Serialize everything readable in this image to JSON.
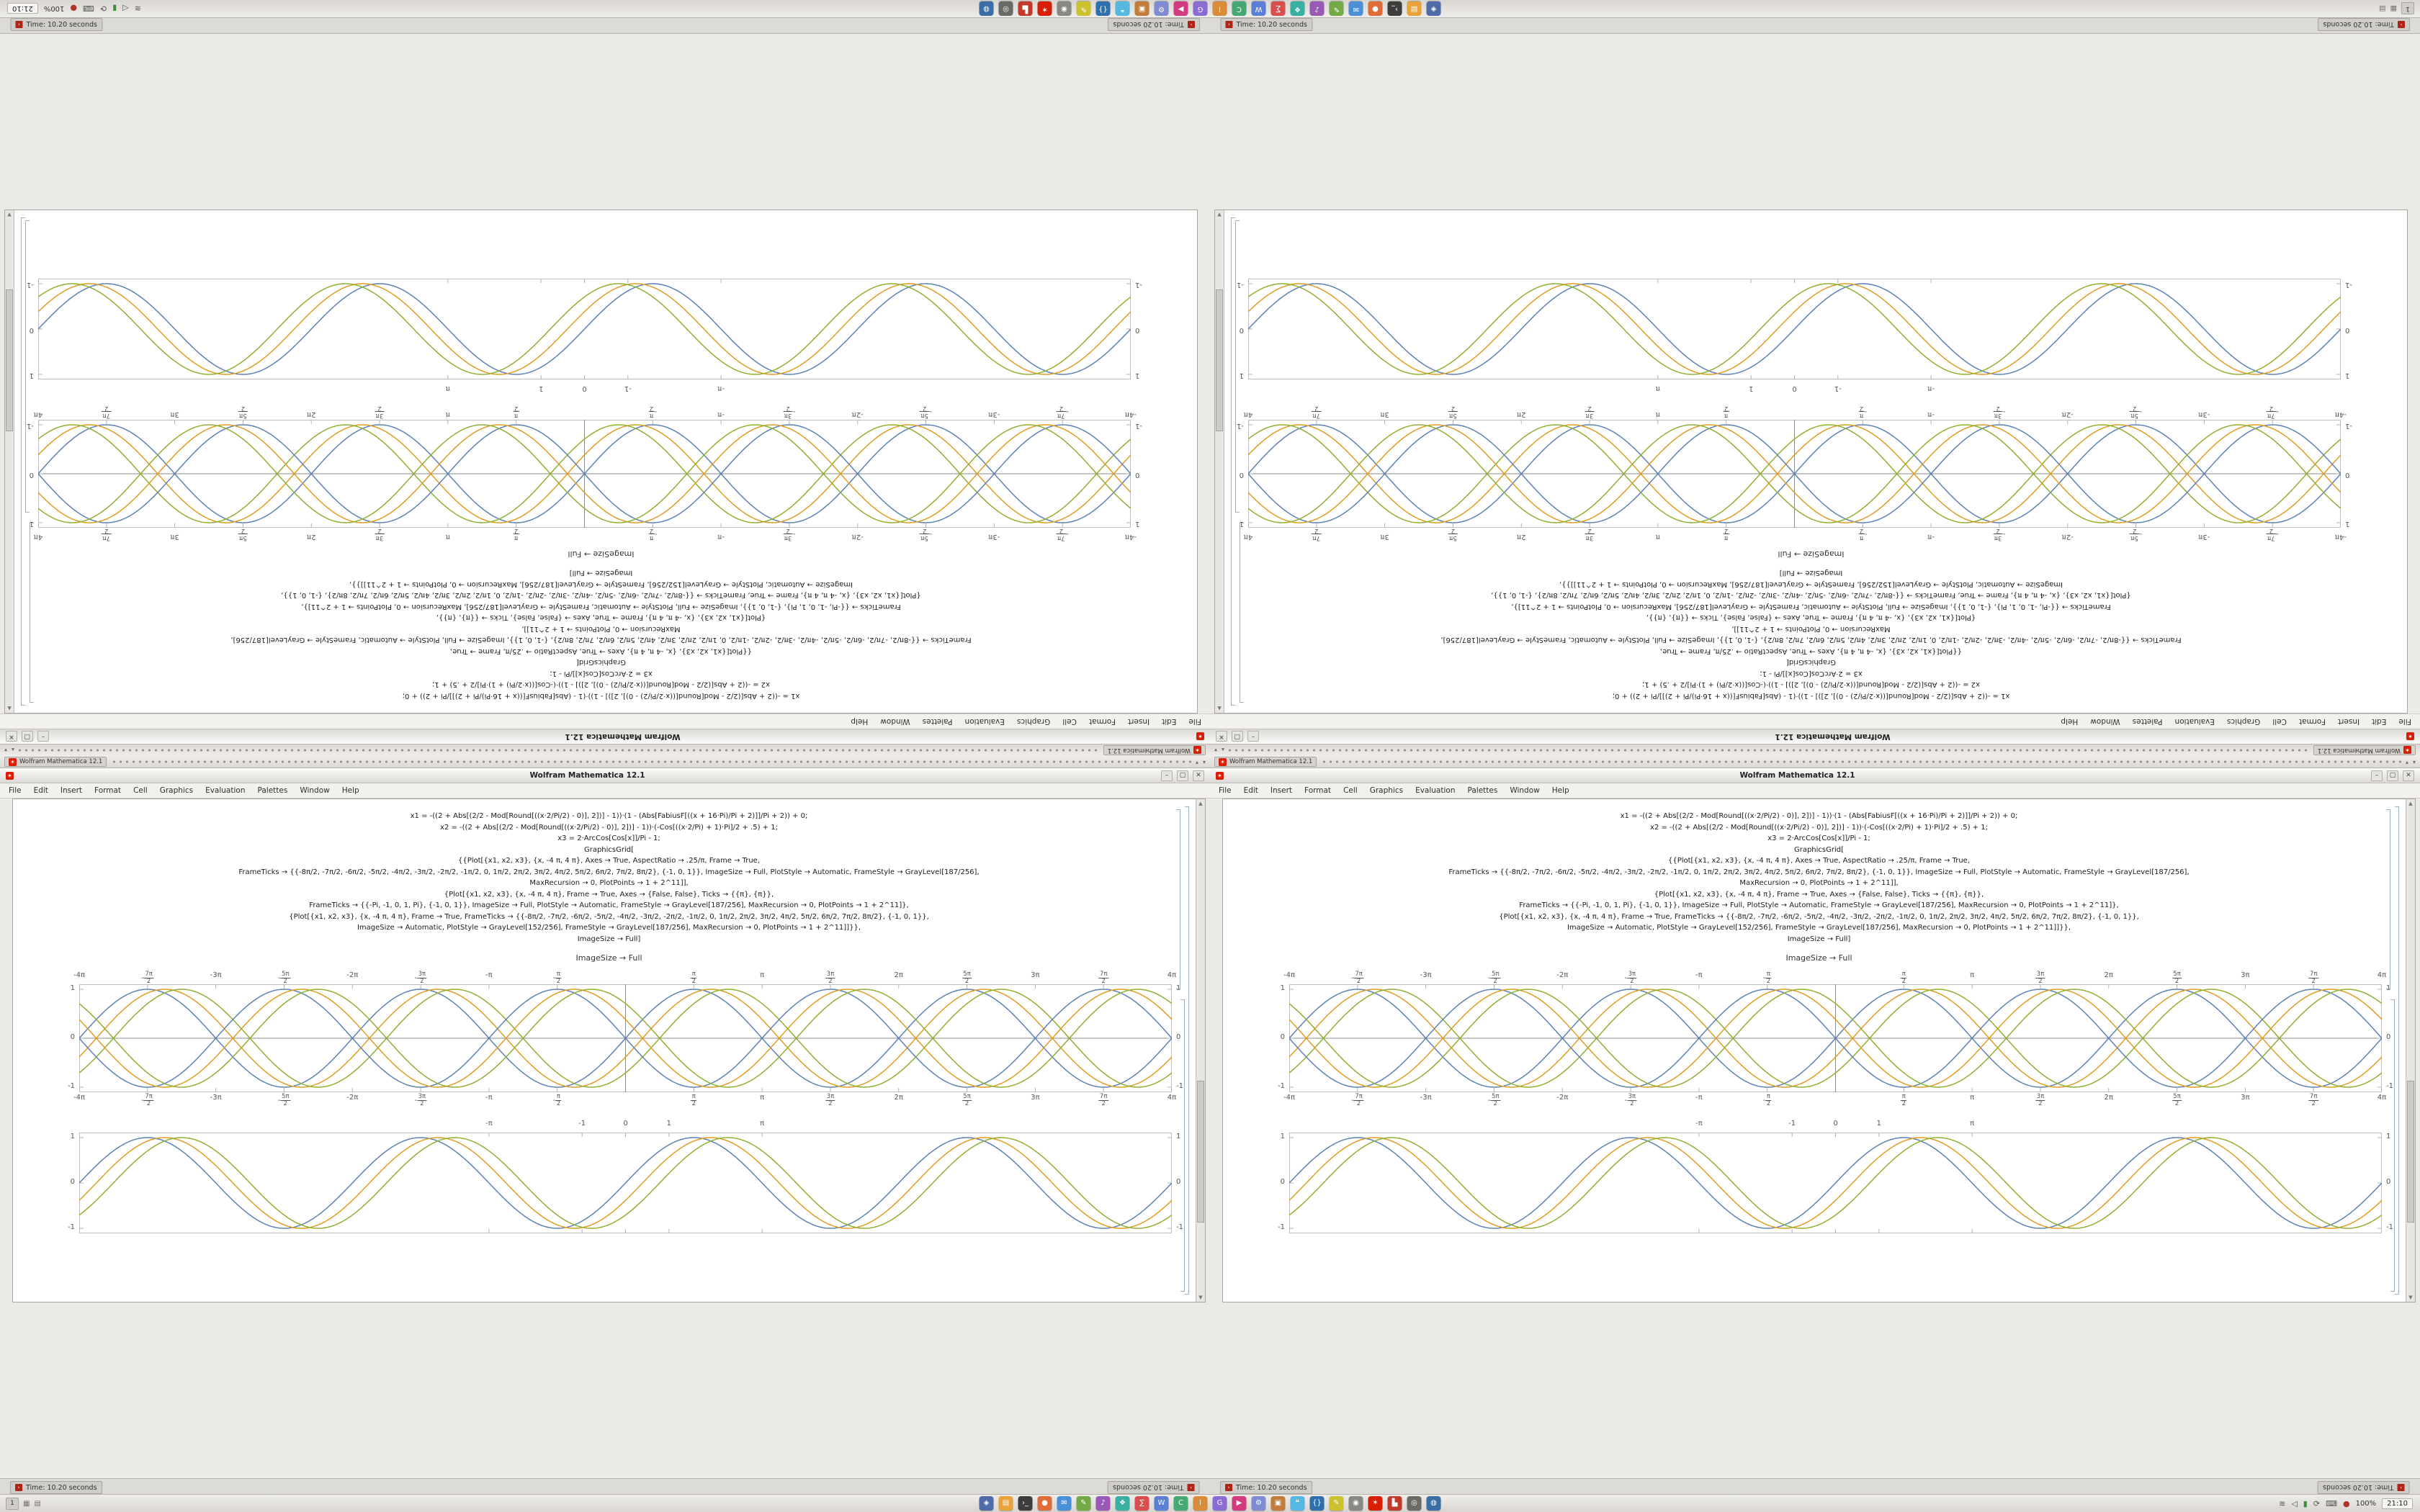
{
  "window": {
    "title": "Wolfram Mathematica 12.1",
    "taskbar_button_title": "Wolfram Mathematica 12.1",
    "menus": [
      "File",
      "Edit",
      "Insert",
      "Format",
      "Cell",
      "Graphics",
      "Evaluation",
      "Palettes",
      "Window",
      "Help"
    ],
    "window_controls": {
      "minimize": "–",
      "maximize": "▢",
      "close": "✕"
    },
    "between_label": "ImageSize → Full",
    "code_lines": [
      "x1 = -((2 + Abs[(2/2 - Mod[Round[((x·2/Pi/2) - 0)], 2])] - 1))·(1 - (Abs[FabiusF[((x + 16·Pi)/Pi + 2)]]/Pi + 2)) + 0;",
      "x2 = -((2 + Abs[(2/2 - Mod[Round[((x·2/Pi/2) - 0)], 2])] - 1))·(-Cos[((x·2/Pi) + 1)·Pi]/2 + .5) + 1;",
      "x3 = 2·ArcCos[Cos[x]]/Pi - 1;",
      "GraphicsGrid[",
      "{{Plot[{x1, x2, x3}, {x, -4 π, 4 π}, Axes → True, AspectRatio → .25/π, Frame → True,",
      "FrameTicks → {{-8π/2, -7π/2, -6π/2, -5π/2, -4π/2, -3π/2, -2π/2, -1π/2, 0, 1π/2, 2π/2, 3π/2, 4π/2, 5π/2, 6π/2, 7π/2, 8π/2}, {-1, 0, 1}}, ImageSize → Full, PlotStyle → Automatic, FrameStyle → GrayLevel[187/256],",
      "MaxRecursion → 0, PlotPoints → 1 + 2^11]],",
      "{Plot[{x1, x2, x3}, {x, -4 π, 4 π}, Frame → True, Axes → {False, False}, Ticks → {{π}, {π}},",
      "FrameTicks → {{-Pi, -1, 0, 1, Pi}, {-1, 0, 1}}, ImageSize → Full, PlotStyle → Automatic, FrameStyle → GrayLevel[187/256], MaxRecursion → 0, PlotPoints → 1 + 2^11]},",
      "{Plot[{x1, x2, x3}, {x, -4 π, 4 π}, Frame → True, FrameTicks → {{-8π/2, -7π/2, -6π/2, -5π/2, -4π/2, -3π/2, -2π/2, -1π/2, 0, 1π/2, 2π/2, 3π/2, 4π/2, 5π/2, 6π/2, 7π/2, 8π/2}, {-1, 0, 1}},",
      "ImageSize → Automatic, PlotStyle → GrayLevel[152/256], FrameStyle → GrayLevel[187/256], MaxRecursion → 0, PlotPoints → 1 + 2^11]]}},",
      "ImageSize → Full]"
    ]
  },
  "time_window": {
    "title": "Time: 10.20 seconds"
  },
  "taskbar": {
    "workspace": "1",
    "battery": "100%",
    "clock": "21:10",
    "launcher_icons": [
      {
        "name": "menu",
        "color": "#4f6ba8",
        "glyph": "◈"
      },
      {
        "name": "files",
        "color": "#e8a33a",
        "glyph": "▤"
      },
      {
        "name": "terminal",
        "color": "#3d3d3d",
        "glyph": "›_"
      },
      {
        "name": "browser",
        "color": "#e06c3a",
        "glyph": "●"
      },
      {
        "name": "mail",
        "color": "#4a90d9",
        "glyph": "✉"
      },
      {
        "name": "editor",
        "color": "#73a946",
        "glyph": "✎"
      },
      {
        "name": "music",
        "color": "#9b59b6",
        "glyph": "♪"
      },
      {
        "name": "photos",
        "color": "#3ab0a2",
        "glyph": "❖"
      },
      {
        "name": "calculator",
        "color": "#d94f4f",
        "glyph": "∑"
      },
      {
        "name": "writer",
        "color": "#5b7fd4",
        "glyph": "W"
      },
      {
        "name": "spreadsheet",
        "color": "#46a973",
        "glyph": "C"
      },
      {
        "name": "impress",
        "color": "#d98c3a",
        "glyph": "I"
      },
      {
        "name": "gimp",
        "color": "#8a6cd4",
        "glyph": "G"
      },
      {
        "name": "video",
        "color": "#d43a7f",
        "glyph": "▶"
      },
      {
        "name": "settings",
        "color": "#7f8cd4",
        "glyph": "⚙"
      },
      {
        "name": "archive",
        "color": "#c17d3a",
        "glyph": "▣"
      },
      {
        "name": "chat",
        "color": "#55b8e0",
        "glyph": "❝"
      },
      {
        "name": "code",
        "color": "#2f6fab",
        "glyph": "{}"
      },
      {
        "name": "notes",
        "color": "#cbc22e",
        "glyph": "✎"
      },
      {
        "name": "disks",
        "color": "#888884",
        "glyph": "◉"
      },
      {
        "name": "mathematica",
        "color": "#d81e05",
        "glyph": "✶"
      },
      {
        "name": "pdf",
        "color": "#c0392b",
        "glyph": "▙"
      },
      {
        "name": "camera",
        "color": "#6a6a66",
        "glyph": "◎"
      },
      {
        "name": "globe",
        "color": "#3a6ea5",
        "glyph": "◍"
      }
    ],
    "tray_icons": [
      {
        "name": "network",
        "glyph": "≋",
        "color": "#555"
      },
      {
        "name": "volume",
        "glyph": "◁",
        "color": "#555"
      },
      {
        "name": "battery",
        "glyph": "▮",
        "color": "#3a8f3a"
      },
      {
        "name": "updates",
        "glyph": "⟳",
        "color": "#555"
      },
      {
        "name": "keyboard",
        "glyph": "⌨",
        "color": "#555"
      },
      {
        "name": "notifications",
        "glyph": "●",
        "color": "#b03328"
      }
    ]
  },
  "chart_data": [
    {
      "id": "braided-trig-plot",
      "type": "line",
      "title": "",
      "xlabel": "",
      "ylabel": "",
      "x_domain": [
        -12.56637,
        12.56637
      ],
      "ylim": [
        -1,
        1
      ],
      "frame": true,
      "axes": true,
      "frame_color": "#bdbdbd",
      "axis_color": "#8a8a8a",
      "x_ticks": [
        {
          "v": -12.56637,
          "label": "-4π"
        },
        {
          "v": -10.99557,
          "label": "-7π/2"
        },
        {
          "v": -9.42478,
          "label": "-3π"
        },
        {
          "v": -7.85398,
          "label": "-5π/2"
        },
        {
          "v": -6.28319,
          "label": "-2π"
        },
        {
          "v": -4.71239,
          "label": "-3π/2"
        },
        {
          "v": -3.14159,
          "label": "-π"
        },
        {
          "v": -1.5708,
          "label": "-π/2"
        },
        {
          "v": 1.5708,
          "label": "π/2"
        },
        {
          "v": 3.14159,
          "label": "π"
        },
        {
          "v": 4.71239,
          "label": "3π/2"
        },
        {
          "v": 6.28319,
          "label": "2π"
        },
        {
          "v": 7.85398,
          "label": "5π/2"
        },
        {
          "v": 9.42478,
          "label": "3π"
        },
        {
          "v": 10.99557,
          "label": "7π/2"
        },
        {
          "v": 12.56637,
          "label": "4π"
        }
      ],
      "y_ticks": [
        {
          "v": -1,
          "label": "-1"
        },
        {
          "v": 0,
          "label": "0"
        },
        {
          "v": 1,
          "label": "1"
        }
      ],
      "series": [
        {
          "name": "sin(x)",
          "phase": 0,
          "sign": 1,
          "color": "#5E81B5"
        },
        {
          "name": "sin(x-π/8)",
          "phase": 0.3927,
          "sign": 1,
          "color": "#E19C24"
        },
        {
          "name": "sin(x-π/4)",
          "phase": 0.7854,
          "sign": 1,
          "color": "#8FB032"
        },
        {
          "name": "-sin(x)",
          "phase": 0,
          "sign": -1,
          "color": "#5E81B5"
        },
        {
          "name": "-sin(x-π/8)",
          "phase": 0.3927,
          "sign": -1,
          "color": "#E19C24"
        },
        {
          "name": "-sin(x-π/4)",
          "phase": 0.7854,
          "sign": -1,
          "color": "#8FB032"
        }
      ],
      "x_labels_top": true,
      "x_labels_bottom": true
    },
    {
      "id": "phase-shifted-sine-plot",
      "type": "line",
      "title": "",
      "xlabel": "",
      "ylabel": "",
      "x_domain": [
        -12.56637,
        12.56637
      ],
      "ylim": [
        -1,
        1
      ],
      "frame": true,
      "axes": false,
      "frame_color": "#bdbdbd",
      "axis_color": "#8a8a8a",
      "x_ticks": [
        {
          "v": -3.14159,
          "label": "-π"
        },
        {
          "v": -1,
          "label": "-1"
        },
        {
          "v": 0,
          "label": "0"
        },
        {
          "v": 1,
          "label": "1"
        },
        {
          "v": 3.14159,
          "label": "π"
        }
      ],
      "y_ticks": [
        {
          "v": -1,
          "label": "-1"
        },
        {
          "v": 0,
          "label": "0"
        },
        {
          "v": 1,
          "label": "1"
        }
      ],
      "series": [
        {
          "name": "sin(x)",
          "phase": 0,
          "sign": 1,
          "color": "#5E81B5"
        },
        {
          "name": "sin(x-π/8)",
          "phase": 0.3927,
          "sign": 1,
          "color": "#E19C24"
        },
        {
          "name": "sin(x-π/4)",
          "phase": 0.7854,
          "sign": 1,
          "color": "#8FB032"
        }
      ],
      "x_labels_top": true,
      "x_labels_bottom": false
    }
  ]
}
